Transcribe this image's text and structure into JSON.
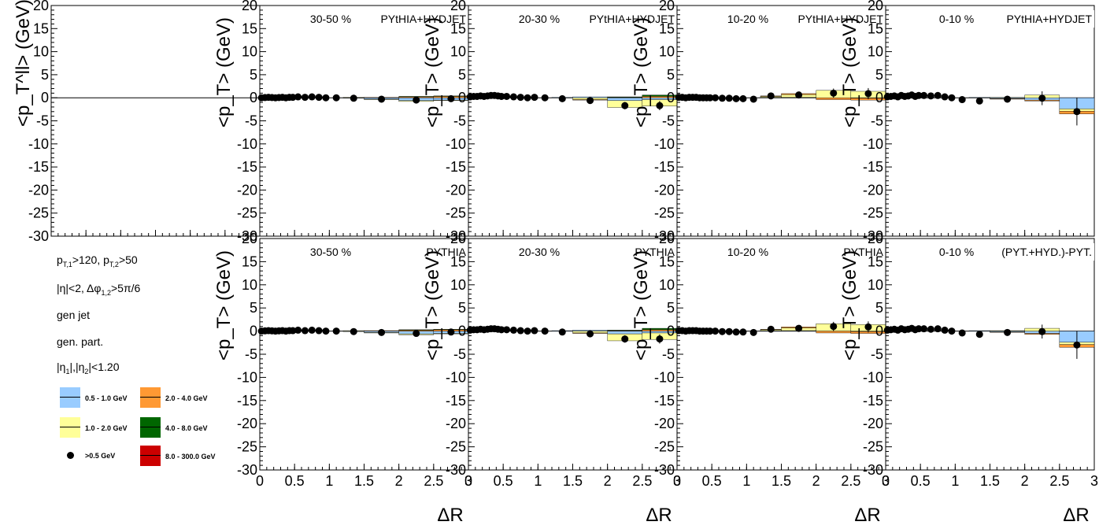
{
  "chart_data": {
    "type": "bar",
    "stacked": true,
    "layout": "2x4 panel grid (top row: PYTHIA+HYDJET, bottom row: PYTHIA); leftmost top panel is an empty axis frame",
    "ylabel_first": "<p_T^ll> (GeV)",
    "ylabel": "<p_T> (GeV)",
    "xlabel": "ΔR",
    "xlim": [
      0,
      3
    ],
    "ylim": [
      -30,
      20
    ],
    "yticks": [
      "20",
      "15",
      "10",
      "5",
      "0",
      "-5",
      "-10",
      "-15",
      "-20",
      "-25",
      "-30"
    ],
    "xticks": [
      "0",
      "0.5",
      "1",
      "1.5",
      "2",
      "2.5",
      "3"
    ],
    "zero_line": true,
    "panel_row_labels": [
      "PYTHIA+HYDJET",
      "PYTHIA"
    ],
    "panels": [
      {
        "row": 0,
        "centrality": "30-50 %",
        "tag": "PYtHIA+HYDJET"
      },
      {
        "row": 0,
        "centrality": "20-30 %",
        "tag": "PYtHIA+HYDJET"
      },
      {
        "row": 0,
        "centrality": "10-20 %",
        "tag": "PYtHIA+HYDJET"
      },
      {
        "row": 0,
        "centrality": "0-10 %",
        "tag": "PYtHIA+HYDJET"
      },
      {
        "row": 1,
        "centrality": "30-50 %",
        "tag": "PYTHIA"
      },
      {
        "row": 1,
        "centrality": "20-30 %",
        "tag": "PYTHIA"
      },
      {
        "row": 1,
        "centrality": "10-20 %",
        "tag": "PYTHIA"
      },
      {
        "row": 1,
        "centrality": "0-10 %",
        "tag": "(PYT.+HYD.)-PYT."
      }
    ],
    "bin_edges": [
      0,
      0.05,
      0.1,
      0.15,
      0.2,
      0.25,
      0.3,
      0.35,
      0.4,
      0.45,
      0.5,
      0.6,
      0.7,
      0.8,
      0.9,
      1.0,
      1.2,
      1.5,
      2.0,
      2.5,
      3.0
    ],
    "series": [
      {
        "name": "0.5 - 1.0 GeV",
        "color": "#99ccff"
      },
      {
        "name": "1.0 - 2.0 GeV",
        "color": "#ffff99"
      },
      {
        "name": "2.0 - 4.0 GeV",
        "color": "#ff9933"
      },
      {
        "name": "4.0 - 8.0 GeV",
        "color": "#006600"
      },
      {
        "name": "8.0 - 300.0 GeV",
        "color": "#cc0000"
      },
      {
        "name": ">0.5 GeV",
        "marker": "filled-circle",
        "color": "#000000"
      }
    ],
    "panel_values": {
      "30-50": {
        "s0.5": [
          0,
          0,
          0,
          0,
          0,
          0,
          0,
          0,
          0,
          0,
          0,
          0,
          0,
          0,
          0,
          0,
          -0.1,
          -0.3,
          -0.6,
          -0.5
        ],
        "s1": [
          0,
          0,
          0,
          0,
          0,
          0,
          0,
          0,
          0,
          0,
          0,
          0,
          0,
          0,
          0,
          0,
          0.1,
          -0.1,
          -0.2,
          -0.1
        ],
        "s2": [
          0,
          0,
          0,
          0,
          0,
          0,
          0,
          0,
          0,
          0,
          0,
          0,
          0,
          0,
          0,
          0,
          0,
          0.1,
          0.2,
          0.3
        ],
        "s4": [
          0,
          0,
          0,
          0,
          0,
          0,
          0,
          0,
          0,
          0,
          0,
          0,
          0,
          0,
          0,
          0,
          0,
          0,
          0.1,
          0.1
        ],
        "s8": [
          0,
          0,
          0,
          0,
          0,
          0,
          0,
          0,
          0,
          0,
          0,
          0,
          0,
          0,
          0,
          0,
          0,
          0,
          0,
          0
        ],
        "total": [
          0,
          0.05,
          0.1,
          0.05,
          0,
          0.05,
          0.1,
          0,
          0.1,
          0.1,
          0.2,
          0.1,
          0.2,
          0.1,
          0,
          0,
          -0.1,
          -0.3,
          -0.5,
          -0.2
        ],
        "err": [
          0,
          0,
          0,
          0,
          0,
          0,
          0,
          0,
          0,
          0,
          0,
          0,
          0,
          0,
          0,
          0,
          0.2,
          0.3,
          0.4,
          0.4
        ]
      },
      "20-30": {
        "s0.5": [
          0,
          0,
          0,
          0,
          0,
          0,
          0,
          0,
          0,
          0,
          0,
          0,
          0,
          0,
          0,
          0,
          0.1,
          0.2,
          -0.6,
          -0.4
        ],
        "s1": [
          0,
          0,
          0,
          0,
          0,
          0,
          0,
          0,
          0,
          0,
          0,
          0,
          0,
          0,
          0,
          0,
          0,
          -0.4,
          -1.5,
          -1.4
        ],
        "s2": [
          0,
          0,
          0,
          0,
          0,
          0,
          0,
          0,
          0,
          0,
          0,
          0,
          0,
          0,
          0,
          0,
          0,
          -0.1,
          0.1,
          0.3
        ],
        "s4": [
          0,
          0,
          0,
          0,
          0,
          0,
          0,
          0,
          0,
          0,
          0,
          0,
          0,
          0,
          0,
          0,
          0,
          0,
          0.1,
          0.3
        ],
        "s8": [
          0,
          0,
          0,
          0,
          0,
          0,
          0,
          0,
          0,
          0,
          0,
          0,
          0,
          0,
          0,
          0,
          0,
          0,
          0,
          0
        ],
        "total": [
          0.2,
          0.3,
          0.3,
          0.4,
          0.3,
          0.4,
          0.5,
          0.5,
          0.4,
          0.3,
          0.3,
          0.2,
          0.1,
          0,
          0.1,
          0,
          -0.2,
          -0.6,
          -1.7,
          -1.7
        ],
        "err": [
          0,
          0,
          0,
          0,
          0,
          0,
          0,
          0,
          0,
          0,
          0,
          0,
          0,
          0,
          0,
          0,
          0.3,
          0.5,
          0.8,
          1.0
        ]
      },
      "10-20": {
        "s0.5": [
          0,
          0,
          0,
          0,
          0,
          0,
          0,
          0,
          0,
          0,
          0,
          0,
          0,
          0,
          0,
          0,
          0.1,
          0.1,
          0,
          -0.1
        ],
        "s1": [
          0,
          0,
          0,
          0,
          0,
          0,
          0,
          0,
          0,
          0,
          0,
          0,
          0,
          0,
          0,
          0,
          0.2,
          0.6,
          1.6,
          1.4
        ],
        "s2": [
          0,
          0,
          0,
          0,
          0,
          0,
          0,
          0,
          0,
          0,
          0,
          0,
          0,
          0,
          0,
          0,
          0.1,
          0.2,
          -0.4,
          -0.4
        ],
        "s4": [
          0,
          0,
          0,
          0,
          0,
          0,
          0,
          0,
          0,
          0,
          0,
          0,
          0,
          0,
          0,
          0,
          0,
          0,
          0,
          0
        ],
        "s8": [
          0,
          0,
          0,
          0,
          0,
          0,
          0,
          0,
          0,
          0,
          0,
          0,
          0,
          0,
          0,
          0,
          0,
          0,
          0,
          0
        ],
        "total": [
          0.1,
          0.1,
          0,
          0.1,
          0.1,
          0.1,
          0,
          0,
          0,
          0,
          0,
          -0.1,
          -0.1,
          -0.2,
          -0.2,
          -0.3,
          0.4,
          0.6,
          1.0,
          0.9
        ],
        "err": [
          0,
          0,
          0,
          0,
          0,
          0,
          0,
          0,
          0,
          0,
          0,
          0,
          0,
          0,
          0,
          0,
          0.3,
          0.5,
          1.0,
          1.2
        ]
      },
      "0-10": {
        "s0.5": [
          0,
          0,
          0,
          0,
          0,
          0,
          0,
          0,
          0,
          0,
          0,
          0,
          0,
          0,
          0,
          0,
          0.1,
          -0.2,
          -0.5,
          -2.4
        ],
        "s1": [
          0,
          0,
          0,
          0,
          0,
          0,
          0,
          0,
          0,
          0,
          0,
          0,
          0,
          0,
          0,
          0,
          0,
          0.1,
          0.6,
          -0.5
        ],
        "s2": [
          0,
          0,
          0,
          0,
          0,
          0,
          0,
          0,
          0,
          0,
          0,
          0,
          0,
          0,
          0,
          0,
          0,
          -0.1,
          -0.2,
          -0.6
        ],
        "s4": [
          0,
          0,
          0,
          0,
          0,
          0,
          0,
          0,
          0,
          0,
          0,
          0,
          0,
          0,
          0,
          0,
          0,
          0,
          0,
          0
        ],
        "s8": [
          0,
          0,
          0,
          0,
          0,
          0,
          0,
          0,
          0,
          0,
          0,
          0,
          0,
          0,
          0,
          0,
          0,
          0,
          0,
          0
        ],
        "total": [
          0.2,
          0.3,
          0.4,
          0.2,
          0.5,
          0.3,
          0.4,
          0.6,
          0.3,
          0.5,
          0.5,
          0.4,
          0.5,
          0.2,
          0,
          -0.4,
          -0.7,
          -0.3,
          -0.1,
          -3.0
        ],
        "err": [
          0,
          0,
          0,
          0,
          0,
          0,
          0,
          0,
          0,
          0,
          0,
          0,
          0,
          0,
          0,
          0,
          0.4,
          0.6,
          1.5,
          3.0
        ]
      }
    }
  },
  "legend": {
    "cuts": {
      "pt1": "p",
      "pt1_sub": "T,1",
      "pt1_val": ">120, p",
      "pt2_sub": "T,2",
      "pt2_val": ">50",
      "eta": "|η|<2, Δφ",
      "eta_sub": "1,2",
      "eta_val": ">5π/6"
    },
    "gen_jet": "gen jet",
    "gen_part": "gen. part.",
    "etacut_a": "|η",
    "etacut_a_sub": "1",
    "etacut_b": "|,|η",
    "etacut_b_sub": "2",
    "etacut_c": "|<1.20"
  }
}
